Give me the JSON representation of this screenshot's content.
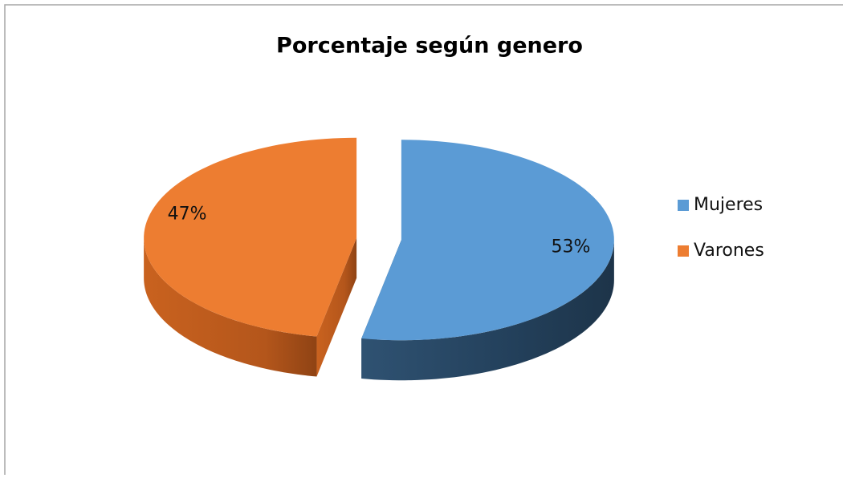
{
  "chart_data": {
    "type": "pie",
    "title": "Porcentaje según genero",
    "categories": [
      "Mujeres",
      "Varones"
    ],
    "values": [
      53,
      47
    ],
    "value_labels": [
      "53%",
      "47%"
    ],
    "colors": [
      "#5b9bd5",
      "#ed7d31"
    ],
    "legend": "right"
  }
}
